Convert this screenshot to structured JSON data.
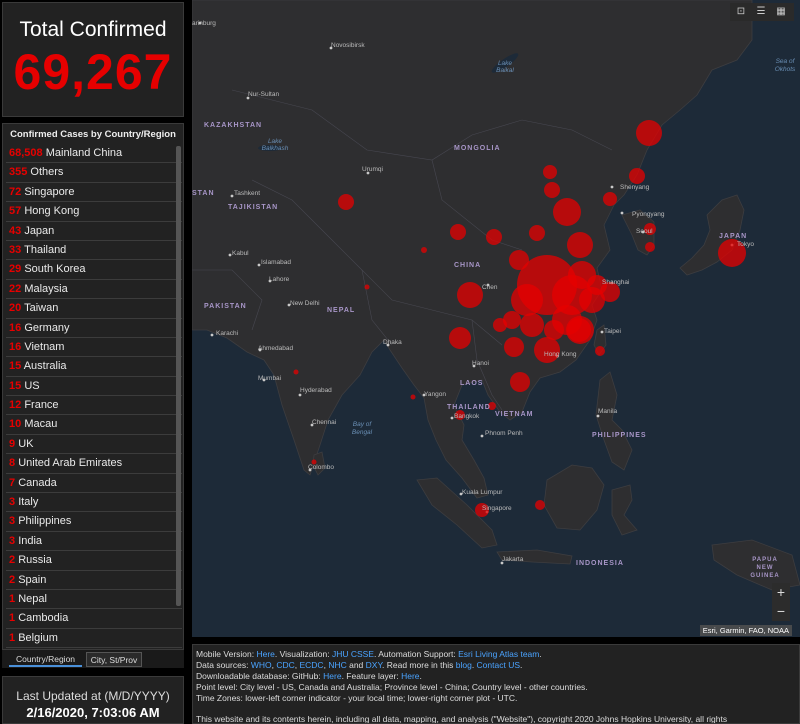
{
  "total": {
    "title": "Total Confirmed",
    "value": "69,267"
  },
  "list": {
    "header": "Confirmed Cases by Country/Region",
    "rows": [
      {
        "count": "68,508",
        "name": "Mainland China"
      },
      {
        "count": "355",
        "name": "Others"
      },
      {
        "count": "72",
        "name": "Singapore"
      },
      {
        "count": "57",
        "name": "Hong Kong"
      },
      {
        "count": "43",
        "name": "Japan"
      },
      {
        "count": "33",
        "name": "Thailand"
      },
      {
        "count": "29",
        "name": "South Korea"
      },
      {
        "count": "22",
        "name": "Malaysia"
      },
      {
        "count": "20",
        "name": "Taiwan"
      },
      {
        "count": "16",
        "name": "Germany"
      },
      {
        "count": "16",
        "name": "Vietnam"
      },
      {
        "count": "15",
        "name": "Australia"
      },
      {
        "count": "15",
        "name": "US"
      },
      {
        "count": "12",
        "name": "France"
      },
      {
        "count": "10",
        "name": "Macau"
      },
      {
        "count": "9",
        "name": "UK"
      },
      {
        "count": "8",
        "name": "United Arab Emirates"
      },
      {
        "count": "7",
        "name": "Canada"
      },
      {
        "count": "3",
        "name": "Italy"
      },
      {
        "count": "3",
        "name": "Philippines"
      },
      {
        "count": "3",
        "name": "India"
      },
      {
        "count": "2",
        "name": "Russia"
      },
      {
        "count": "2",
        "name": "Spain"
      },
      {
        "count": "1",
        "name": "Nepal"
      },
      {
        "count": "1",
        "name": "Cambodia"
      },
      {
        "count": "1",
        "name": "Belgium"
      }
    ]
  },
  "tabs": {
    "country": "Country/Region",
    "city": "City, St/Prov"
  },
  "update": {
    "label": "Last Updated at (M/D/YYYY)",
    "value": "2/16/2020, 7:03:06 AM"
  },
  "map": {
    "labels": {
      "kazakhstan": "KAZAKHSTAN",
      "mongolia": "MONGOLIA",
      "china": "CHINA",
      "pakistan": "PAKISTAN",
      "japan": "JAPAN",
      "indonesia": "INDONESIA",
      "thailand": "THAILAND",
      "vietnam": "VIETNAM",
      "philippines": "PHILIPPINES",
      "laos": "LAOS",
      "nepal": "NEPAL",
      "tajikistan": "TAJIKISTAN",
      "papua": "PAPUA NEW GUINEA",
      "stan": "STAN"
    },
    "cities": {
      "yekaterinburg": "arinburg",
      "novosibirsk": "Novosibirsk",
      "nursultan": "Nur-Sultan",
      "urumqi": "Urumqi",
      "tashkent": "Tashkent",
      "kabul": "Kabul",
      "islamabad": "Islamabad",
      "lahore": "Lahore",
      "newdelhi": "New Delhi",
      "karachi": "Karachi",
      "ahmedabad": "Ahmedabad",
      "mumbai": "Mumbai",
      "hyderabad": "Hyderabad",
      "chennai": "Chennai",
      "colombo": "Colombo",
      "dhaka": "Dhaka",
      "yangon": "Yangon",
      "bangkok": "Bangkok",
      "hanoi": "Hanoi",
      "phnompenh": "Phnom Penh",
      "kualalumpur": "Kuala Lumpur",
      "singapore": "Singapore",
      "jakarta": "Jakarta",
      "manila": "Manila",
      "taipei": "Taipei",
      "hongkong": "Hong Kong",
      "shanghai": "Shanghai",
      "seoul": "Seoul",
      "pyongyang": "Pyongyang",
      "shenyang": "Shenyang",
      "tokyo": "Tokyo",
      "chen": "Chen"
    },
    "water": {
      "baikal": "Lake Baikal",
      "balkhash": "Lake Balkhash",
      "bengal": "Bay of Bengal",
      "okhotsk": "Sea of Okhots"
    },
    "attribution": "Esri, Garmin, FAO, NOAA",
    "zoom_in": "+",
    "zoom_out": "−",
    "bubble_color": "#e60000"
  },
  "info": {
    "l1_a": "Mobile Version: ",
    "l1_here": "Here",
    "l1_b": ". Visualization: ",
    "l1_jhu": "JHU CSSE",
    "l1_c": ". Automation Support: ",
    "l1_esri": "Esri Living Atlas team",
    "l1_d": ".",
    "l2_a": "Data sources: ",
    "l2_who": "WHO",
    "l2_cdc": "CDC",
    "l2_ecdc": "ECDC",
    "l2_nhc": "NHC",
    "l2_dxy": "DXY",
    "l2_b": ". Read more in this ",
    "l2_blog": "blog",
    "l2_contact": "Contact US",
    "l3_a": "Downloadable database: GitHub: ",
    "l3_here": "Here",
    "l3_b": ". Feature layer: ",
    "l3_here2": "Here",
    "l4": "Point level: City level - US, Canada and Australia; Province level - China; Country level - other countries.",
    "l5": "Time Zones: lower-left corner indicator - your local time; lower-right corner plot - UTC.",
    "copyright": "This website and its contents herein, including all data, mapping, and analysis (\"Website\"), copyright 2020 Johns Hopkins University, all rights"
  }
}
